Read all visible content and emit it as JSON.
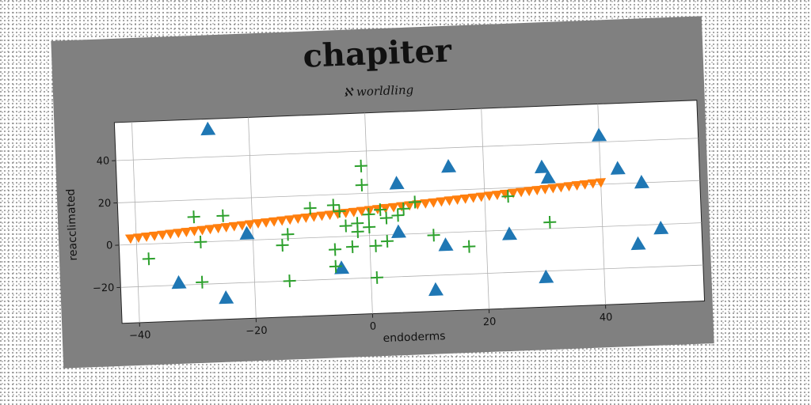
{
  "chart_data": {
    "type": "scatter",
    "title": "chapiter",
    "subtitle": "ℵ worldling",
    "xlabel": "endoderms",
    "ylabel": "reacclimated",
    "xlim": [
      -43,
      57
    ],
    "ylim": [
      -37,
      58
    ],
    "xticks": [
      -40,
      -20,
      0,
      20,
      40
    ],
    "yticks": [
      -20,
      0,
      20,
      40
    ],
    "grid": true,
    "series": [
      {
        "marker": "triangle-up",
        "color": "#1f77b4",
        "points": [
          [
            -27,
            53
          ],
          [
            -33,
            -19
          ],
          [
            -25,
            -27
          ],
          [
            -21,
            3
          ],
          [
            -5,
            -15
          ],
          [
            5,
            24
          ],
          [
            5,
            1
          ],
          [
            11,
            -27
          ],
          [
            14,
            31
          ],
          [
            13,
            -6
          ],
          [
            24,
            -2
          ],
          [
            30,
            29
          ],
          [
            31,
            24
          ],
          [
            30,
            -23
          ],
          [
            40,
            43
          ],
          [
            43,
            27
          ],
          [
            47,
            20
          ],
          [
            46,
            -9
          ],
          [
            50,
            -2
          ]
        ]
      },
      {
        "marker": "triangle-down",
        "color": "#ff7f0e",
        "line": {
          "x_start": -41,
          "x_end": 40,
          "y_start": 3,
          "y_end": 21,
          "count": 60
        }
      },
      {
        "marker": "plus",
        "color": "#2ca02c",
        "points": [
          [
            -38,
            -7
          ],
          [
            -30,
            12
          ],
          [
            -29,
            0
          ],
          [
            -29,
            -19
          ],
          [
            -25,
            12
          ],
          [
            -15,
            -3
          ],
          [
            -14,
            2
          ],
          [
            -14,
            -20
          ],
          [
            -10,
            14
          ],
          [
            -6,
            15
          ],
          [
            -6,
            -6
          ],
          [
            -6,
            -14
          ],
          [
            -5,
            12
          ],
          [
            -4,
            5
          ],
          [
            -3,
            -5
          ],
          [
            -2,
            6
          ],
          [
            -2,
            2
          ],
          [
            -1,
            24
          ],
          [
            -1,
            33
          ],
          [
            0,
            10
          ],
          [
            0,
            4
          ],
          [
            1,
            -5
          ],
          [
            1,
            -20
          ],
          [
            2,
            12
          ],
          [
            3,
            8
          ],
          [
            3,
            -3
          ],
          [
            5,
            9
          ],
          [
            6,
            12
          ],
          [
            8,
            15
          ],
          [
            11,
            -1
          ],
          [
            17,
            -7
          ],
          [
            24,
            16
          ],
          [
            31,
            3
          ]
        ]
      }
    ]
  }
}
